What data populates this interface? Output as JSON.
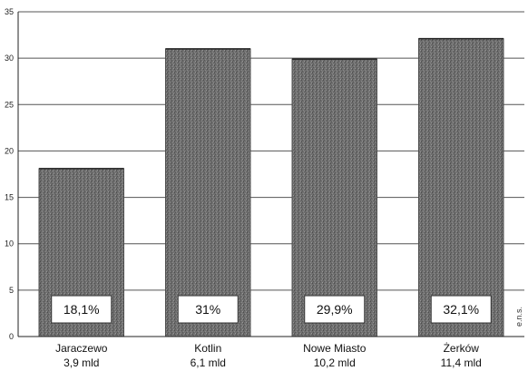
{
  "chart_data": {
    "type": "bar",
    "categories": [
      "Jaraczewo",
      "Kotlin",
      "Nowe Miasto",
      "Żerków"
    ],
    "category_sublabels": [
      "3,9 mld",
      "6,1 mld",
      "10,2 mld",
      "11,4 mld"
    ],
    "values": [
      18.1,
      31,
      29.9,
      32.1
    ],
    "data_labels": [
      "18,1%",
      "31%",
      "29,9%",
      "32,1%"
    ],
    "ylim": [
      0,
      35
    ],
    "yticks": [
      "0",
      "5",
      "10",
      "15",
      "20",
      "25",
      "30",
      "35"
    ],
    "grid": true,
    "colors": {
      "bar": "#6f6f6f",
      "bar_dark": "#4a4a4a",
      "grid": "#555555",
      "label_box": "#ffffff"
    }
  },
  "side_mark": "e.n.s."
}
